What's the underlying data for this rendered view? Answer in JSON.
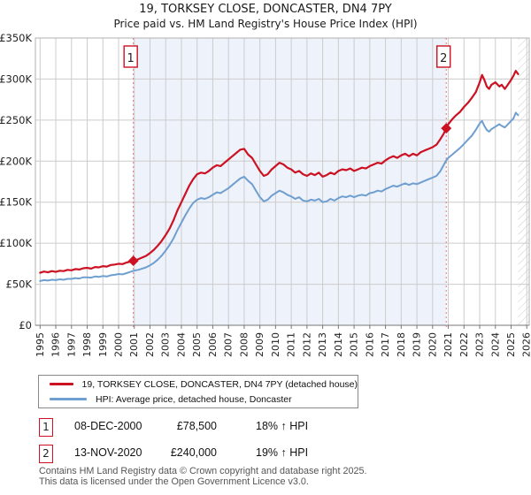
{
  "title": "19, TORKSEY CLOSE, DONCASTER, DN4 7PY",
  "subtitle": "Price paid vs. HM Land Registry's House Price Index (HPI)",
  "colors": {
    "property_line": "#cc1122",
    "hpi_line": "#6f9fd0",
    "grid": "#cccccc",
    "plot_border": "#b0b0b0",
    "axis": "#777777",
    "tick_text": "#222222",
    "shade": "#eef2fa",
    "dashed_sale_line": "#e57373",
    "marker_box_border": "#cc1122",
    "hatch": "#c8c8c8",
    "footer_text": "#555555"
  },
  "chart_data": {
    "type": "line",
    "title": "19, TORKSEY CLOSE, DONCASTER, DN4 7PY — Price paid vs. HPI",
    "xlabel": "",
    "ylabel": "",
    "xlim": [
      1995,
      2026.2
    ],
    "ylim": [
      0,
      350000
    ],
    "grid": true,
    "legend_position": "below",
    "y_ticks": [
      {
        "value": 0,
        "label": "£0"
      },
      {
        "value": 50000,
        "label": "£50K"
      },
      {
        "value": 100000,
        "label": "£100K"
      },
      {
        "value": 150000,
        "label": "£150K"
      },
      {
        "value": 200000,
        "label": "£200K"
      },
      {
        "value": 250000,
        "label": "£250K"
      },
      {
        "value": 300000,
        "label": "£300K"
      },
      {
        "value": 350000,
        "label": "£350K"
      }
    ],
    "x_ticks": [
      1995,
      1996,
      1997,
      1998,
      1999,
      2000,
      2001,
      2002,
      2003,
      2004,
      2005,
      2006,
      2007,
      2008,
      2009,
      2010,
      2011,
      2012,
      2013,
      2014,
      2015,
      2016,
      2017,
      2018,
      2019,
      2020,
      2021,
      2022,
      2023,
      2024,
      2025,
      2026
    ],
    "shaded_region": {
      "from": 2000.94,
      "to": 2020.87
    },
    "future_hatch_from": 2025.45,
    "series": [
      {
        "name": "19, TORKSEY CLOSE, DONCASTER, DN4 7PY (detached house)",
        "color": "#cc1122",
        "points": [
          [
            1995.0,
            64000
          ],
          [
            1995.25,
            65500
          ],
          [
            1995.5,
            64500
          ],
          [
            1995.75,
            66000
          ],
          [
            1996.0,
            65000
          ],
          [
            1996.25,
            66500
          ],
          [
            1996.5,
            66000
          ],
          [
            1996.75,
            67500
          ],
          [
            1997.0,
            67000
          ],
          [
            1997.25,
            68500
          ],
          [
            1997.5,
            68000
          ],
          [
            1997.75,
            69500
          ],
          [
            1998.0,
            70000
          ],
          [
            1998.25,
            69000
          ],
          [
            1998.5,
            71000
          ],
          [
            1998.75,
            70500
          ],
          [
            1999.0,
            72000
          ],
          [
            1999.25,
            71500
          ],
          [
            1999.5,
            73500
          ],
          [
            1999.75,
            74000
          ],
          [
            2000.0,
            75000
          ],
          [
            2000.25,
            74500
          ],
          [
            2000.5,
            76500
          ],
          [
            2000.75,
            77500
          ],
          [
            2000.94,
            78500
          ],
          [
            2001.25,
            80500
          ],
          [
            2001.5,
            82500
          ],
          [
            2001.75,
            84500
          ],
          [
            2002.0,
            88000
          ],
          [
            2002.25,
            92000
          ],
          [
            2002.5,
            97000
          ],
          [
            2002.75,
            103000
          ],
          [
            2003.0,
            110000
          ],
          [
            2003.25,
            118000
          ],
          [
            2003.5,
            128000
          ],
          [
            2003.75,
            140000
          ],
          [
            2004.0,
            150000
          ],
          [
            2004.25,
            160000
          ],
          [
            2004.5,
            170000
          ],
          [
            2004.75,
            178000
          ],
          [
            2005.0,
            184000
          ],
          [
            2005.25,
            186000
          ],
          [
            2005.5,
            185000
          ],
          [
            2005.75,
            188000
          ],
          [
            2006.0,
            192000
          ],
          [
            2006.25,
            195000
          ],
          [
            2006.5,
            194000
          ],
          [
            2006.75,
            198000
          ],
          [
            2007.0,
            202000
          ],
          [
            2007.25,
            206000
          ],
          [
            2007.5,
            210000
          ],
          [
            2007.75,
            214000
          ],
          [
            2008.0,
            215000
          ],
          [
            2008.25,
            208000
          ],
          [
            2008.5,
            204000
          ],
          [
            2008.75,
            196000
          ],
          [
            2009.0,
            188000
          ],
          [
            2009.25,
            182000
          ],
          [
            2009.5,
            184000
          ],
          [
            2009.75,
            190000
          ],
          [
            2010.0,
            194000
          ],
          [
            2010.25,
            198000
          ],
          [
            2010.5,
            196000
          ],
          [
            2010.75,
            192000
          ],
          [
            2011.0,
            190000
          ],
          [
            2011.25,
            186000
          ],
          [
            2011.5,
            188000
          ],
          [
            2011.75,
            184000
          ],
          [
            2012.0,
            182000
          ],
          [
            2012.25,
            185000
          ],
          [
            2012.5,
            183000
          ],
          [
            2012.75,
            186000
          ],
          [
            2013.0,
            181000
          ],
          [
            2013.25,
            183000
          ],
          [
            2013.5,
            186000
          ],
          [
            2013.75,
            184000
          ],
          [
            2014.0,
            188000
          ],
          [
            2014.25,
            190000
          ],
          [
            2014.5,
            189000
          ],
          [
            2014.75,
            191000
          ],
          [
            2015.0,
            188000
          ],
          [
            2015.25,
            190000
          ],
          [
            2015.5,
            192000
          ],
          [
            2015.75,
            191000
          ],
          [
            2016.0,
            194000
          ],
          [
            2016.25,
            196000
          ],
          [
            2016.5,
            198000
          ],
          [
            2016.75,
            197000
          ],
          [
            2017.0,
            201000
          ],
          [
            2017.25,
            204000
          ],
          [
            2017.5,
            206000
          ],
          [
            2017.75,
            204000
          ],
          [
            2018.0,
            207000
          ],
          [
            2018.25,
            209000
          ],
          [
            2018.5,
            206000
          ],
          [
            2018.75,
            209000
          ],
          [
            2019.0,
            207000
          ],
          [
            2019.25,
            211000
          ],
          [
            2019.5,
            213000
          ],
          [
            2019.75,
            215000
          ],
          [
            2020.0,
            217000
          ],
          [
            2020.25,
            220000
          ],
          [
            2020.5,
            227000
          ],
          [
            2020.7,
            233000
          ],
          [
            2020.87,
            240000
          ],
          [
            2021.0,
            245000
          ],
          [
            2021.25,
            251000
          ],
          [
            2021.5,
            256000
          ],
          [
            2021.75,
            260000
          ],
          [
            2022.0,
            266000
          ],
          [
            2022.25,
            271000
          ],
          [
            2022.5,
            277000
          ],
          [
            2022.75,
            284000
          ],
          [
            2023.0,
            296000
          ],
          [
            2023.15,
            305000
          ],
          [
            2023.3,
            299000
          ],
          [
            2023.45,
            291000
          ],
          [
            2023.6,
            288000
          ],
          [
            2023.75,
            293000
          ],
          [
            2024.0,
            296000
          ],
          [
            2024.25,
            291000
          ],
          [
            2024.4,
            293000
          ],
          [
            2024.6,
            288000
          ],
          [
            2024.75,
            292000
          ],
          [
            2025.0,
            299000
          ],
          [
            2025.15,
            304000
          ],
          [
            2025.3,
            310000
          ],
          [
            2025.45,
            306000
          ]
        ]
      },
      {
        "name": "HPI: Average price, detached house, Doncaster",
        "color": "#6f9fd0",
        "points": [
          [
            1995.0,
            54000
          ],
          [
            1995.25,
            55000
          ],
          [
            1995.5,
            54500
          ],
          [
            1995.75,
            55500
          ],
          [
            1996.0,
            55000
          ],
          [
            1996.25,
            56000
          ],
          [
            1996.5,
            55500
          ],
          [
            1996.75,
            56500
          ],
          [
            1997.0,
            56500
          ],
          [
            1997.25,
            57500
          ],
          [
            1997.5,
            57000
          ],
          [
            1997.75,
            58500
          ],
          [
            1998.0,
            58500
          ],
          [
            1998.25,
            58000
          ],
          [
            1998.5,
            59500
          ],
          [
            1998.75,
            59000
          ],
          [
            1999.0,
            60000
          ],
          [
            1999.25,
            59500
          ],
          [
            1999.5,
            61000
          ],
          [
            1999.75,
            61500
          ],
          [
            2000.0,
            62500
          ],
          [
            2000.25,
            62000
          ],
          [
            2000.5,
            63500
          ],
          [
            2000.75,
            65000
          ],
          [
            2000.94,
            66500
          ],
          [
            2001.25,
            67500
          ],
          [
            2001.5,
            69000
          ],
          [
            2001.75,
            70500
          ],
          [
            2002.0,
            73000
          ],
          [
            2002.25,
            76000
          ],
          [
            2002.5,
            80000
          ],
          [
            2002.75,
            85000
          ],
          [
            2003.0,
            91000
          ],
          [
            2003.25,
            98000
          ],
          [
            2003.5,
            106000
          ],
          [
            2003.75,
            116000
          ],
          [
            2004.0,
            125000
          ],
          [
            2004.25,
            134000
          ],
          [
            2004.5,
            142000
          ],
          [
            2004.75,
            149000
          ],
          [
            2005.0,
            153000
          ],
          [
            2005.25,
            155000
          ],
          [
            2005.5,
            154000
          ],
          [
            2005.75,
            156000
          ],
          [
            2006.0,
            159000
          ],
          [
            2006.25,
            162000
          ],
          [
            2006.5,
            161000
          ],
          [
            2006.75,
            164000
          ],
          [
            2007.0,
            167000
          ],
          [
            2007.25,
            171000
          ],
          [
            2007.5,
            175000
          ],
          [
            2007.75,
            179000
          ],
          [
            2008.0,
            181000
          ],
          [
            2008.25,
            176000
          ],
          [
            2008.5,
            172000
          ],
          [
            2008.75,
            164000
          ],
          [
            2009.0,
            156000
          ],
          [
            2009.25,
            151000
          ],
          [
            2009.5,
            153000
          ],
          [
            2009.75,
            158000
          ],
          [
            2010.0,
            161000
          ],
          [
            2010.25,
            164000
          ],
          [
            2010.5,
            162000
          ],
          [
            2010.75,
            159000
          ],
          [
            2011.0,
            157000
          ],
          [
            2011.25,
            154000
          ],
          [
            2011.5,
            156000
          ],
          [
            2011.75,
            152000
          ],
          [
            2012.0,
            151000
          ],
          [
            2012.25,
            153000
          ],
          [
            2012.5,
            152000
          ],
          [
            2012.75,
            154000
          ],
          [
            2013.0,
            150000
          ],
          [
            2013.25,
            151000
          ],
          [
            2013.5,
            154000
          ],
          [
            2013.75,
            152000
          ],
          [
            2014.0,
            155000
          ],
          [
            2014.25,
            157000
          ],
          [
            2014.5,
            156000
          ],
          [
            2014.75,
            158000
          ],
          [
            2015.0,
            156000
          ],
          [
            2015.25,
            158000
          ],
          [
            2015.5,
            159000
          ],
          [
            2015.75,
            158000
          ],
          [
            2016.0,
            161000
          ],
          [
            2016.25,
            162000
          ],
          [
            2016.5,
            164000
          ],
          [
            2016.75,
            163000
          ],
          [
            2017.0,
            166000
          ],
          [
            2017.25,
            168000
          ],
          [
            2017.5,
            170000
          ],
          [
            2017.75,
            169000
          ],
          [
            2018.0,
            171000
          ],
          [
            2018.25,
            173000
          ],
          [
            2018.5,
            171000
          ],
          [
            2018.75,
            173000
          ],
          [
            2019.0,
            172000
          ],
          [
            2019.25,
            174000
          ],
          [
            2019.5,
            176000
          ],
          [
            2019.75,
            178000
          ],
          [
            2020.0,
            180000
          ],
          [
            2020.25,
            182000
          ],
          [
            2020.5,
            188000
          ],
          [
            2020.7,
            195000
          ],
          [
            2020.87,
            201000
          ],
          [
            2021.0,
            204000
          ],
          [
            2021.25,
            208000
          ],
          [
            2021.5,
            212000
          ],
          [
            2021.75,
            216000
          ],
          [
            2022.0,
            221000
          ],
          [
            2022.25,
            226000
          ],
          [
            2022.5,
            231000
          ],
          [
            2022.75,
            238000
          ],
          [
            2023.0,
            246000
          ],
          [
            2023.15,
            249000
          ],
          [
            2023.3,
            243000
          ],
          [
            2023.45,
            238000
          ],
          [
            2023.6,
            236000
          ],
          [
            2023.75,
            239000
          ],
          [
            2024.0,
            242000
          ],
          [
            2024.25,
            245000
          ],
          [
            2024.4,
            243000
          ],
          [
            2024.6,
            241000
          ],
          [
            2024.75,
            244000
          ],
          [
            2025.0,
            249000
          ],
          [
            2025.15,
            252000
          ],
          [
            2025.3,
            259000
          ],
          [
            2025.45,
            256000
          ]
        ]
      }
    ],
    "sales": [
      {
        "label": "1",
        "x": 2000.94,
        "price": 78500
      },
      {
        "label": "2",
        "x": 2020.87,
        "price": 240000
      }
    ]
  },
  "legend": {
    "items": [
      {
        "label": "19, TORKSEY CLOSE, DONCASTER, DN4 7PY (detached house)",
        "color": "#cc1122"
      },
      {
        "label": "HPI: Average price, detached house, Doncaster",
        "color": "#6f9fd0"
      }
    ]
  },
  "table": {
    "rows": [
      {
        "marker": "1",
        "date": "08-DEC-2000",
        "price": "£78,500",
        "vs_hpi": "18% ↑ HPI"
      },
      {
        "marker": "2",
        "date": "13-NOV-2020",
        "price": "£240,000",
        "vs_hpi": "19% ↑ HPI"
      }
    ]
  },
  "footer": {
    "line1": "Contains HM Land Registry data © Crown copyright and database right 2025.",
    "line2": "This data is licensed under the Open Government Licence v3.0."
  }
}
